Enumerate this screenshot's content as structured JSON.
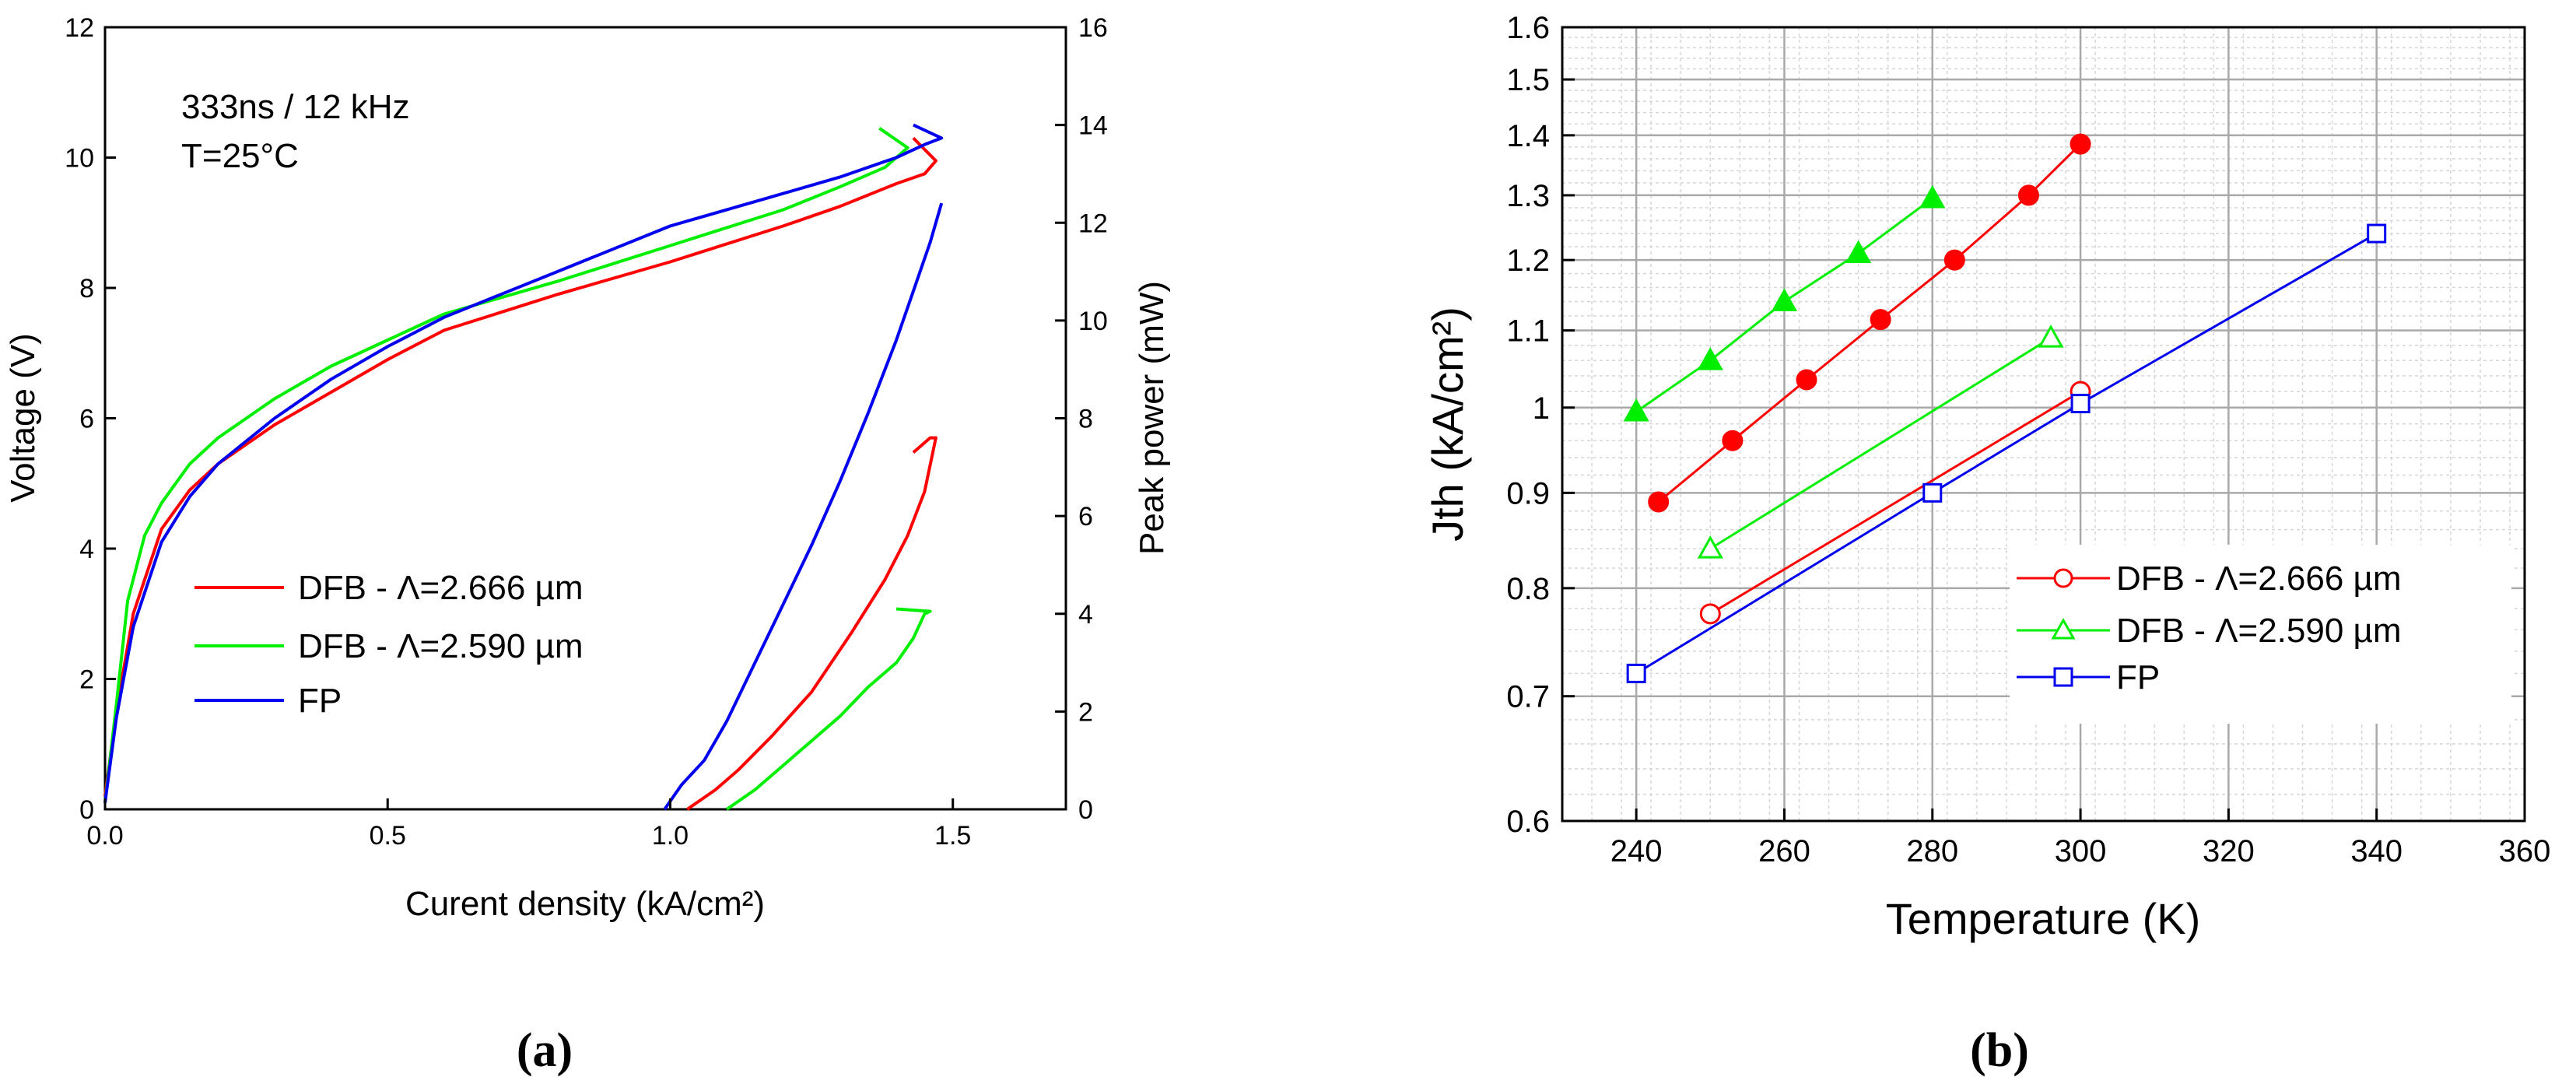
{
  "chart_data": [
    {
      "panel": "(a)",
      "type": "line",
      "annotation": [
        "333ns / 12 kHz",
        "T=25°C"
      ],
      "xlabel": "Curent density (kA/cm²)",
      "ylabel": "Voltage (V)",
      "y2label": "Peak power (mW)",
      "xlim": [
        0,
        1.7
      ],
      "ylim": [
        0,
        12
      ],
      "y2lim": [
        0,
        16
      ],
      "xticks": [
        "0.0",
        "0.5",
        "1.0",
        "1.5"
      ],
      "yticks": [
        "0",
        "2",
        "4",
        "6",
        "8",
        "10",
        "12"
      ],
      "y2ticks": [
        "0",
        "2",
        "4",
        "6",
        "8",
        "10",
        "12",
        "14",
        "16"
      ],
      "legend": "lower-left",
      "grid": false,
      "series": [
        {
          "name": "DFB - Λ=2.666 µm",
          "color": "#ff0000",
          "axis": "voltage",
          "x": [
            0.0,
            0.02,
            0.05,
            0.1,
            0.15,
            0.2,
            0.3,
            0.4,
            0.5,
            0.6,
            0.8,
            1.0,
            1.2,
            1.3,
            1.4,
            1.45,
            1.47,
            1.43
          ],
          "y": [
            0.2,
            1.5,
            3.0,
            4.3,
            4.9,
            5.3,
            5.9,
            6.4,
            6.9,
            7.35,
            7.9,
            8.4,
            8.95,
            9.25,
            9.6,
            9.75,
            9.95,
            10.3
          ]
        },
        {
          "name": "DFB - Λ=2.666 µm",
          "color": "#ff0000",
          "axis": "power",
          "x": [
            1.03,
            1.08,
            1.12,
            1.18,
            1.25,
            1.32,
            1.38,
            1.42,
            1.45,
            1.47,
            1.46,
            1.43
          ],
          "y": [
            0,
            0.4,
            0.8,
            1.5,
            2.4,
            3.6,
            4.7,
            5.6,
            6.5,
            7.6,
            7.6,
            7.3
          ]
        },
        {
          "name": "DFB - Λ=2.590 µm",
          "color": "#00ee00",
          "axis": "voltage",
          "x": [
            0.0,
            0.02,
            0.04,
            0.07,
            0.1,
            0.15,
            0.2,
            0.3,
            0.4,
            0.5,
            0.6,
            0.8,
            1.0,
            1.2,
            1.3,
            1.38,
            1.42,
            1.37
          ],
          "y": [
            0.1,
            1.6,
            3.2,
            4.2,
            4.7,
            5.3,
            5.7,
            6.3,
            6.8,
            7.2,
            7.6,
            8.1,
            8.65,
            9.2,
            9.55,
            9.85,
            10.15,
            10.45
          ]
        },
        {
          "name": "DFB - Λ=2.590 µm",
          "color": "#00ee00",
          "axis": "power",
          "x": [
            1.1,
            1.15,
            1.2,
            1.25,
            1.3,
            1.35,
            1.4,
            1.43,
            1.45,
            1.46,
            1.4
          ],
          "y": [
            0,
            0.4,
            0.9,
            1.4,
            1.9,
            2.5,
            3.0,
            3.5,
            4.0,
            4.05,
            4.1
          ]
        },
        {
          "name": "FP",
          "color": "#0000ee",
          "axis": "voltage",
          "x": [
            0.0,
            0.02,
            0.05,
            0.1,
            0.15,
            0.2,
            0.3,
            0.4,
            0.5,
            0.6,
            0.8,
            1.0,
            1.2,
            1.3,
            1.4,
            1.45,
            1.48,
            1.43
          ],
          "y": [
            0.1,
            1.4,
            2.8,
            4.1,
            4.8,
            5.3,
            6.0,
            6.6,
            7.1,
            7.55,
            8.25,
            8.95,
            9.45,
            9.7,
            10.0,
            10.2,
            10.3,
            10.5
          ]
        },
        {
          "name": "FP",
          "color": "#0000ee",
          "axis": "power",
          "x": [
            0.99,
            1.02,
            1.06,
            1.1,
            1.15,
            1.2,
            1.25,
            1.3,
            1.35,
            1.4,
            1.43,
            1.46,
            1.48
          ],
          "y": [
            0,
            0.5,
            1.0,
            1.8,
            3.0,
            4.2,
            5.4,
            6.7,
            8.1,
            9.6,
            10.6,
            11.6,
            12.4
          ]
        }
      ]
    },
    {
      "panel": "(b)",
      "type": "scatter",
      "xlabel": "Temperature (K)",
      "ylabel": "Jth (kA/cm²)",
      "xlim": [
        230,
        360
      ],
      "ylim": [
        0.6,
        1.6
      ],
      "yscale": "log",
      "xticks": [
        "240",
        "260",
        "280",
        "300",
        "320",
        "340",
        "360"
      ],
      "yticks": [
        "0.6",
        "0.7",
        "0.8",
        "0.9",
        "1",
        "1.1",
        "1.2",
        "1.3",
        "1.4",
        "1.5",
        "1.6"
      ],
      "grid": true,
      "legend": "lower-right",
      "series": [
        {
          "name": "DFB - Λ=2.666 µm",
          "color": "#ff0000",
          "marker": "circle-open",
          "x": [
            250,
            300
          ],
          "y": [
            0.775,
            1.02
          ]
        },
        {
          "name": "DFB - Λ=2.590 µm",
          "color": "#00ee00",
          "marker": "triangle-open",
          "x": [
            250,
            296
          ],
          "y": [
            0.84,
            1.09
          ]
        },
        {
          "name": "FP",
          "color": "#0000ee",
          "marker": "square-open",
          "x": [
            240,
            280,
            300,
            340
          ],
          "y": [
            0.72,
            0.9,
            1.005,
            1.24
          ]
        },
        {
          "color": "#ff0000",
          "marker": "circle-filled",
          "x": [
            243,
            253,
            263,
            273,
            283,
            293,
            300
          ],
          "y": [
            0.89,
            0.96,
            1.035,
            1.115,
            1.2,
            1.3,
            1.385
          ]
        },
        {
          "color": "#00ee00",
          "marker": "triangle-filled",
          "x": [
            240,
            250,
            260,
            270,
            280
          ],
          "y": [
            0.995,
            1.06,
            1.14,
            1.21,
            1.295
          ]
        }
      ]
    }
  ]
}
